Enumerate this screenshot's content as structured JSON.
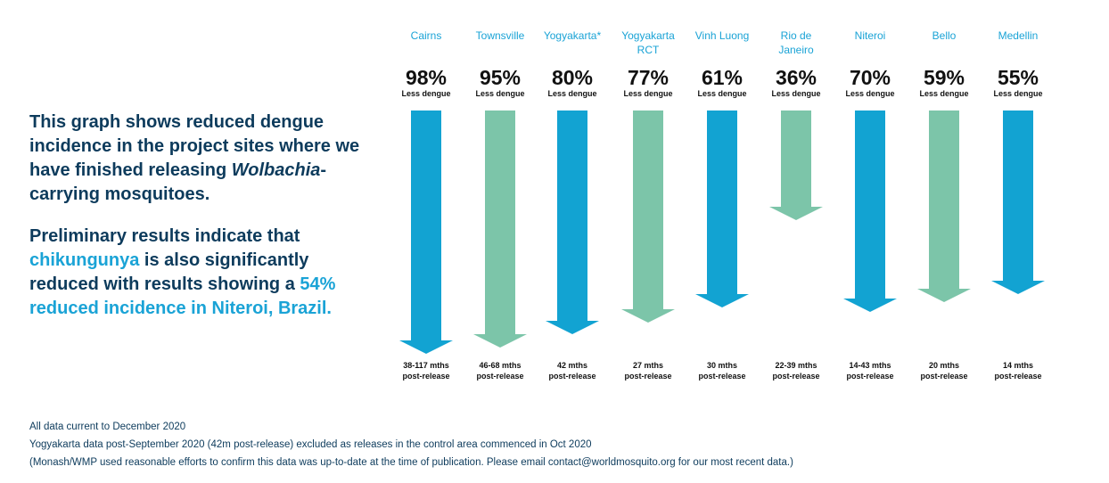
{
  "intro": {
    "p1_before": "This graph shows reduced dengue incidence in the project sites where we have finished releasing ",
    "p1_italic": "Wolbachia",
    "p1_after": "-carrying mosquitoes.",
    "p2_before": "Preliminary results indicate that ",
    "p2_hl1": "chikungunya",
    "p2_mid": " is also significantly reduced with results showing a ",
    "p2_hl2": "54% reduced incidence in Niteroi, Brazil."
  },
  "chart_data": {
    "type": "bar",
    "orientation": "downward-arrows",
    "value_label": "Less dengue",
    "categories": [
      "Cairns",
      "Townsville",
      "Yogyakarta*",
      "Yogyakarta RCT",
      "Vinh Luong",
      "Rio de Janeiro",
      "Niteroi",
      "Bello",
      "Medellin"
    ],
    "category_lines": [
      [
        "Cairns"
      ],
      [
        "Townsville"
      ],
      [
        "Yogyakarta*"
      ],
      [
        "Yogyakarta",
        "RCT"
      ],
      [
        "Vinh Luong"
      ],
      [
        "Rio de",
        "Janeiro"
      ],
      [
        "Niteroi"
      ],
      [
        "Bello"
      ],
      [
        "Medellin"
      ]
    ],
    "values": [
      98,
      95,
      80,
      77,
      61,
      36,
      70,
      59,
      55
    ],
    "value_labels": [
      "98%",
      "95%",
      "80%",
      "77%",
      "61%",
      "36%",
      "70%",
      "59%",
      "55%"
    ],
    "periods": [
      "38-117 mths",
      "46-68 mths",
      "42 mths",
      "27 mths",
      "30 mths",
      "22-39 mths",
      "14-43 mths",
      "20 mths",
      "14 mths"
    ],
    "period_suffix": "post-release",
    "colors": [
      "#12a3d2",
      "#7cc5a9",
      "#12a3d2",
      "#7cc5a9",
      "#12a3d2",
      "#7cc5a9",
      "#12a3d2",
      "#7cc5a9",
      "#12a3d2"
    ]
  },
  "footer": [
    "All data current to December 2020",
    "Yogyakarta data post-September 2020 (42m post-release) excluded as releases in the control area commenced in Oct 2020",
    "(Monash/WMP used reasonable efforts to confirm this data was up-to-date at the time of publication. Please email contact@worldmosquito.org for our most recent data.)"
  ]
}
